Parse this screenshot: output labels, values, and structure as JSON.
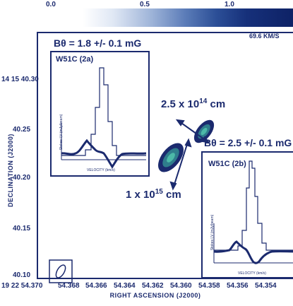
{
  "colorbar": {
    "ticks": [
      "0.0",
      "0.5",
      "1.0"
    ]
  },
  "velocity_label": "69.6 KM/S",
  "main_plot": {
    "ylabel": "DECLINATION (J2000)",
    "xlabel": "RIGHT ASCENSION (J2000)",
    "yticks": [
      "14 15 40.30",
      "40.25",
      "40.20",
      "40.15",
      "40.10"
    ],
    "xticks": [
      "19 22 54.370",
      "54.368",
      "54.366",
      "54.364",
      "54.362",
      "54.360",
      "54.358",
      "54.356",
      "54.354"
    ]
  },
  "annotations": {
    "b_field_left": "Bθ = 1.8 +/- 0.1 mG",
    "b_field_right": "Bθ = 2.5 +/- 0.1 mG",
    "scale_large_prefix": "2.5 x 10",
    "scale_large_exp": "14",
    "scale_large_unit": " cm",
    "scale_small_prefix": "1 x 10",
    "scale_small_exp": "15",
    "scale_small_unit": " cm"
  },
  "insets": [
    {
      "title": "W51C (2a)",
      "ylabel": "Stokes I,V (mJy/beam)",
      "xlabel": "VELOCITY (km/s)"
    },
    {
      "title": "W51C (2b)",
      "ylabel": "Stokes I,V (mJy/beam)",
      "xlabel": "VELOCITY (km/s)"
    }
  ]
}
